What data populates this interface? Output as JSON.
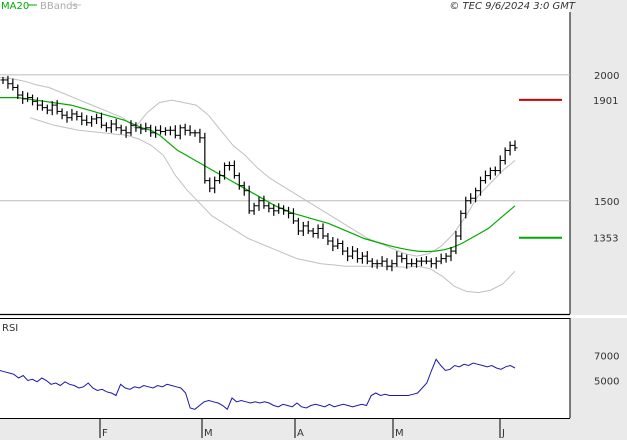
{
  "header": {
    "legend_ma": "MA20",
    "legend_bb": "BBands",
    "copyright": "© TEC 9/6/2024 3:0 GMT"
  },
  "colors": {
    "background": "#ffffff",
    "price_bar": "#000000",
    "ma": "#00aa00",
    "bbands": "#c0c0c0",
    "rsi": "#1a1aaa",
    "resistance": "#cc0000",
    "support": "#00aa00",
    "grid": "#bbbbbb",
    "panel_bg": "#e8e8e8"
  },
  "chart_data": [
    {
      "type": "line",
      "name": "price",
      "title": "",
      "x_ticks": [
        "F",
        "M",
        "A",
        "M",
        "J"
      ],
      "y_ticks": [
        "2000",
        "1500"
      ],
      "ylim": [
        1050,
        2250
      ],
      "grid": true,
      "series": [
        {
          "name": "MA20",
          "color": "#00aa00"
        },
        {
          "name": "BBands",
          "color": "#c0c0c0"
        }
      ],
      "levels": [
        {
          "label": "1901",
          "value": 1901,
          "color": "#cc0000"
        },
        {
          "label": "1353",
          "value": 1353,
          "color": "#00aa00"
        }
      ],
      "ohlc_close": [
        1980,
        1965,
        1950,
        1920,
        1905,
        1910,
        1895,
        1880,
        1870,
        1860,
        1880,
        1855,
        1840,
        1830,
        1845,
        1835,
        1820,
        1810,
        1825,
        1830,
        1800,
        1790,
        1805,
        1790,
        1780,
        1770,
        1800,
        1790,
        1785,
        1790,
        1770,
        1780,
        1775,
        1780,
        1780,
        1760,
        1790,
        1780,
        1770,
        1770,
        1750,
        1580,
        1550,
        1580,
        1600,
        1640,
        1640,
        1600,
        1560,
        1540,
        1460,
        1480,
        1500,
        1480,
        1470,
        1460,
        1470,
        1460,
        1450,
        1420,
        1380,
        1400,
        1380,
        1370,
        1390,
        1360,
        1340,
        1320,
        1330,
        1300,
        1280,
        1300,
        1270,
        1280,
        1260,
        1250,
        1250,
        1260,
        1240,
        1250,
        1280,
        1270,
        1250,
        1250,
        1260,
        1260,
        1260,
        1250,
        1260,
        1270,
        1280,
        1300,
        1360,
        1450,
        1500,
        1510,
        1540,
        1580,
        1600,
        1620,
        1620,
        1660,
        1700,
        1720,
        1710
      ],
      "ma20": [
        1910,
        1910,
        1910,
        1905,
        1900,
        1895,
        1890,
        1885,
        1880,
        1870,
        1860,
        1850,
        1840,
        1830,
        1820,
        1805,
        1790,
        1780,
        1760,
        1730,
        1700,
        1680,
        1660,
        1640,
        1620,
        1600,
        1580,
        1560,
        1540,
        1520,
        1500,
        1480,
        1465,
        1450,
        1440,
        1430,
        1420,
        1410,
        1395,
        1380,
        1365,
        1350,
        1340,
        1330,
        1320,
        1312,
        1305,
        1300,
        1298,
        1300,
        1305,
        1315,
        1330,
        1350,
        1370,
        1390,
        1420,
        1450,
        1480
      ],
      "bb_upper": [
        1990,
        1985,
        1975,
        1960,
        1950,
        1930,
        1910,
        1890,
        1870,
        1850,
        1830,
        1790,
        1850,
        1890,
        1900,
        1890,
        1880,
        1840,
        1780,
        1720,
        1680,
        1630,
        1590,
        1560,
        1530,
        1500,
        1470,
        1440,
        1410,
        1380,
        1350,
        1330,
        1310,
        1290,
        1280,
        1290,
        1320,
        1370,
        1440,
        1520,
        1570,
        1620,
        1660
      ],
      "bb_lower": [
        1830,
        1815,
        1800,
        1790,
        1780,
        1775,
        1770,
        1765,
        1760,
        1745,
        1720,
        1680,
        1600,
        1540,
        1490,
        1440,
        1410,
        1380,
        1350,
        1330,
        1310,
        1290,
        1270,
        1260,
        1250,
        1245,
        1240,
        1240,
        1240,
        1240,
        1238,
        1236,
        1240,
        1230,
        1200,
        1160,
        1140,
        1135,
        1145,
        1170,
        1220
      ]
    },
    {
      "type": "line",
      "name": "rsi",
      "title": "RSI",
      "y_ticks": [
        "7000",
        "5000"
      ],
      "ylim": [
        20,
        100
      ],
      "values": [
        58,
        57,
        56,
        55,
        52,
        54,
        50,
        51,
        49,
        52,
        50,
        47,
        48,
        46,
        49,
        47,
        46,
        44,
        45,
        48,
        44,
        42,
        43,
        41,
        40,
        38,
        47,
        44,
        43,
        45,
        44,
        46,
        45,
        44,
        46,
        45,
        47,
        46,
        45,
        44,
        40,
        28,
        27,
        30,
        33,
        34,
        33,
        32,
        30,
        27,
        36,
        33,
        34,
        33,
        32,
        33,
        32,
        33,
        32,
        30,
        29,
        31,
        30,
        29,
        32,
        29,
        28,
        30,
        31,
        30,
        29,
        31,
        29,
        30,
        31,
        30,
        29,
        30,
        31,
        30,
        38,
        40,
        38,
        39,
        38,
        38,
        38,
        38,
        38,
        39,
        40,
        44,
        48,
        58,
        67,
        62,
        58,
        59,
        62,
        61,
        63,
        62,
        64,
        63,
        62,
        61,
        62,
        60,
        59,
        61,
        62,
        60
      ]
    }
  ]
}
